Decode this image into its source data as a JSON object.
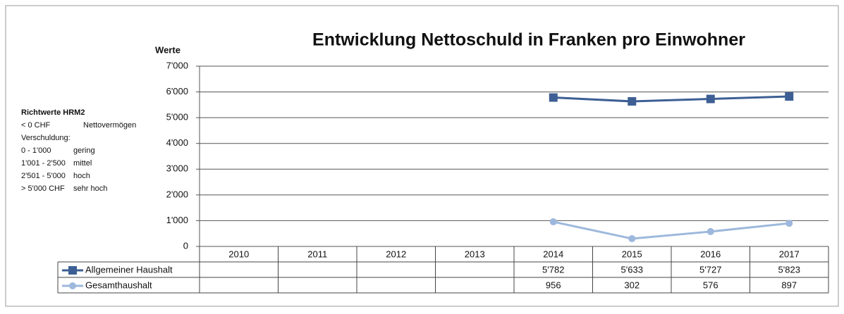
{
  "chart_data": {
    "type": "line",
    "title": "Entwicklung Nettoschuld in Franken pro Einwohner",
    "ylabel": "Werte",
    "categories": [
      "2010",
      "2011",
      "2012",
      "2013",
      "2014",
      "2015",
      "2016",
      "2017"
    ],
    "series": [
      {
        "name": "Allgemeiner Haushalt",
        "color": "#3d5f94",
        "marker": "square",
        "values": [
          null,
          null,
          null,
          null,
          5782,
          5633,
          5727,
          5823
        ],
        "value_labels": [
          null,
          null,
          null,
          null,
          "5'782",
          "5'633",
          "5'727",
          "5'823"
        ]
      },
      {
        "name": "Gesamthaushalt",
        "color": "#9db8dc",
        "marker": "circle",
        "values": [
          null,
          null,
          null,
          null,
          956,
          302,
          576,
          897
        ],
        "value_labels": [
          null,
          null,
          null,
          null,
          "956",
          "302",
          "576",
          "897"
        ]
      }
    ],
    "ylim": [
      0,
      7000
    ],
    "yticks": [
      0,
      {
        "value": 1000,
        "label": "1'000"
      },
      {
        "value": 2000,
        "label": "2'000"
      },
      {
        "value": 3000,
        "label": "3'000"
      },
      {
        "value": 4000,
        "label": "4'000"
      },
      {
        "value": 5000,
        "label": "5'000"
      },
      {
        "value": 6000,
        "label": "6'000"
      },
      {
        "value": 7000,
        "label": "7'000"
      }
    ],
    "grid": true,
    "annotation": {
      "title": "Richtwerte HRM2",
      "rows": [
        [
          "< 0 CHF",
          "Nettovermögen"
        ],
        [
          "Verschuldung:"
        ],
        [
          "0 - 1'000",
          "gering"
        ],
        [
          "1'001 - 2'500",
          "mittel"
        ],
        [
          "2'501 - 5'000",
          "hoch"
        ],
        [
          "> 5'000 CHF",
          "sehr hoch"
        ]
      ]
    }
  }
}
